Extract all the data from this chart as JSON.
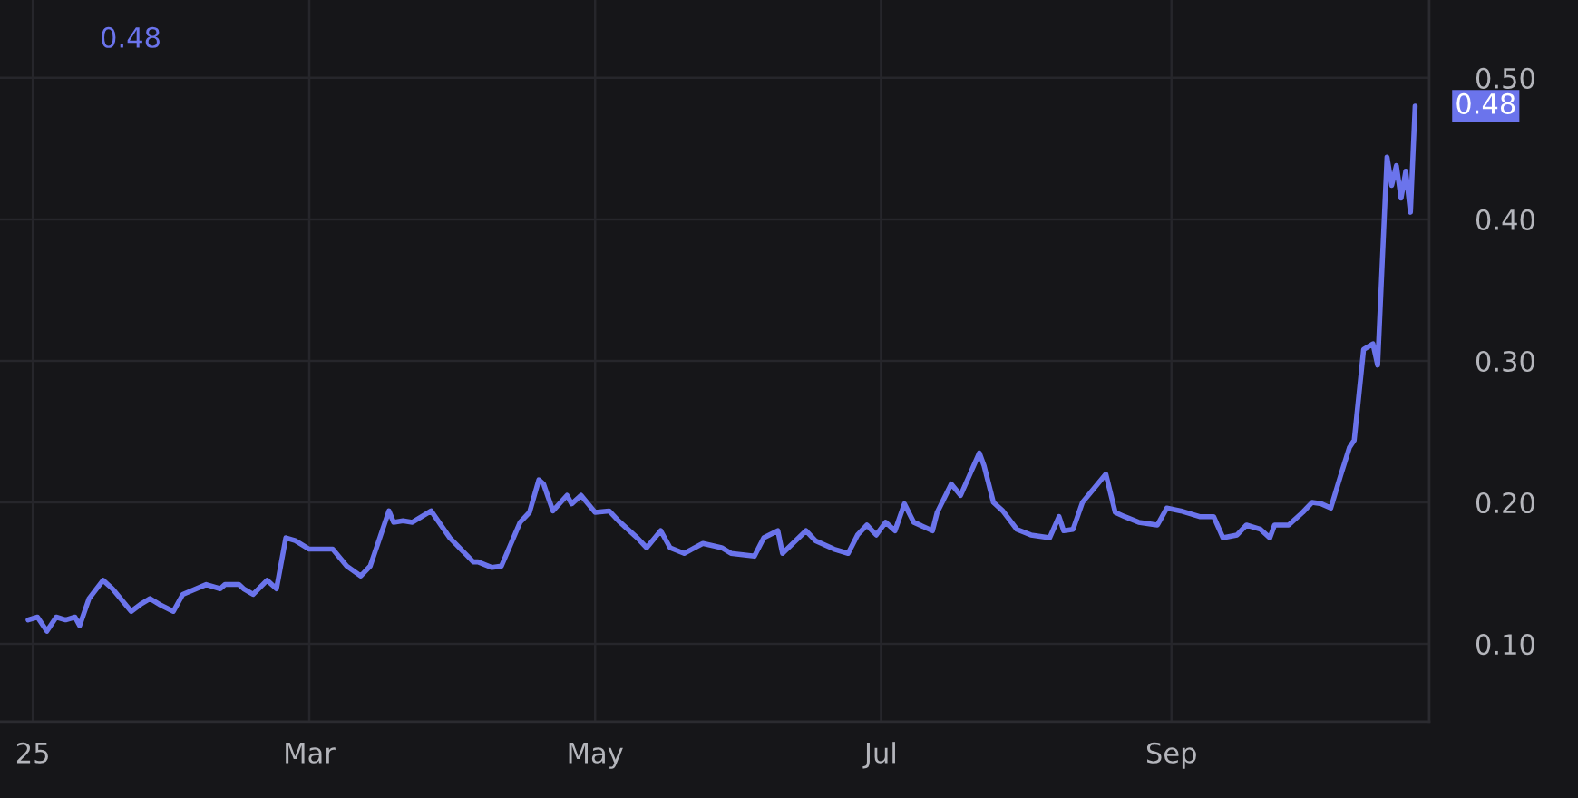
{
  "chart_data": {
    "type": "line",
    "x": [
      "2024-12-31",
      "2025-01-02",
      "2025-01-04",
      "2025-01-06",
      "2025-01-08",
      "2025-01-10",
      "2025-01-11",
      "2025-01-13",
      "2025-01-16",
      "2025-01-18",
      "2025-01-22",
      "2025-01-24",
      "2025-01-26",
      "2025-01-28",
      "2025-01-31",
      "2025-02-02",
      "2025-02-07",
      "2025-02-10",
      "2025-02-11",
      "2025-02-14",
      "2025-02-15",
      "2025-02-17",
      "2025-02-20",
      "2025-02-22",
      "2025-02-24",
      "2025-02-26",
      "2025-03-01",
      "2025-03-06",
      "2025-03-09",
      "2025-03-12",
      "2025-03-14",
      "2025-03-18",
      "2025-03-19",
      "2025-03-21",
      "2025-03-23",
      "2025-03-27",
      "2025-03-31",
      "2025-04-05",
      "2025-04-06",
      "2025-04-09",
      "2025-04-11",
      "2025-04-15",
      "2025-04-17",
      "2025-04-19",
      "2025-04-20",
      "2025-04-22",
      "2025-04-25",
      "2025-04-26",
      "2025-04-28",
      "2025-05-01",
      "2025-05-04",
      "2025-05-06",
      "2025-05-10",
      "2025-05-12",
      "2025-05-15",
      "2025-05-17",
      "2025-05-20",
      "2025-05-24",
      "2025-05-28",
      "2025-05-30",
      "2025-06-04",
      "2025-06-06",
      "2025-06-09",
      "2025-06-10",
      "2025-06-15",
      "2025-06-17",
      "2025-06-21",
      "2025-06-24",
      "2025-06-26",
      "2025-06-28",
      "2025-06-30",
      "2025-07-02",
      "2025-07-04",
      "2025-07-06",
      "2025-07-08",
      "2025-07-12",
      "2025-07-13",
      "2025-07-16",
      "2025-07-18",
      "2025-07-22",
      "2025-07-23",
      "2025-07-25",
      "2025-07-27",
      "2025-07-30",
      "2025-08-02",
      "2025-08-06",
      "2025-08-08",
      "2025-08-09",
      "2025-08-11",
      "2025-08-13",
      "2025-08-18",
      "2025-08-20",
      "2025-08-22",
      "2025-08-25",
      "2025-08-29",
      "2025-08-31",
      "2025-09-03",
      "2025-09-07",
      "2025-09-10",
      "2025-09-12",
      "2025-09-15",
      "2025-09-17",
      "2025-09-20",
      "2025-09-22",
      "2025-09-23",
      "2025-09-26",
      "2025-09-29",
      "2025-10-01",
      "2025-10-03",
      "2025-10-05",
      "2025-10-07",
      "2025-10-09",
      "2025-10-10",
      "2025-10-12",
      "2025-10-14",
      "2025-10-15",
      "2025-10-17",
      "2025-10-18",
      "2025-10-19",
      "2025-10-20",
      "2025-10-21",
      "2025-10-22",
      "2025-10-23"
    ],
    "series": [
      {
        "color": "#6b74ec",
        "values": [
          0.117,
          0.119,
          0.109,
          0.119,
          0.117,
          0.119,
          0.113,
          0.132,
          0.145,
          0.139,
          0.123,
          0.128,
          0.132,
          0.128,
          0.123,
          0.135,
          0.142,
          0.139,
          0.142,
          0.142,
          0.139,
          0.135,
          0.145,
          0.139,
          0.175,
          0.173,
          0.167,
          0.167,
          0.155,
          0.148,
          0.155,
          0.194,
          0.186,
          0.187,
          0.186,
          0.194,
          0.175,
          0.158,
          0.158,
          0.154,
          0.155,
          0.186,
          0.193,
          0.216,
          0.213,
          0.194,
          0.205,
          0.199,
          0.205,
          0.193,
          0.194,
          0.187,
          0.175,
          0.168,
          0.18,
          0.168,
          0.164,
          0.171,
          0.168,
          0.164,
          0.162,
          0.175,
          0.18,
          0.164,
          0.18,
          0.173,
          0.167,
          0.164,
          0.177,
          0.184,
          0.177,
          0.186,
          0.18,
          0.199,
          0.186,
          0.18,
          0.193,
          0.213,
          0.205,
          0.235,
          0.226,
          0.2,
          0.194,
          0.181,
          0.177,
          0.175,
          0.19,
          0.18,
          0.181,
          0.2,
          0.22,
          0.193,
          0.19,
          0.186,
          0.184,
          0.196,
          0.194,
          0.19,
          0.19,
          0.175,
          0.177,
          0.184,
          0.181,
          0.175,
          0.184,
          0.184,
          0.193,
          0.2,
          0.199,
          0.196,
          0.218,
          0.239,
          0.244,
          0.308,
          0.312,
          0.297,
          0.444,
          0.424,
          0.438,
          0.415,
          0.434,
          0.405,
          0.48
        ],
        "value_labels": [
          null,
          null,
          null,
          null,
          null,
          null,
          null,
          null,
          null,
          null,
          null,
          null,
          null,
          null,
          null,
          null,
          null,
          null,
          null,
          null,
          null,
          null,
          null,
          null,
          null,
          null,
          null,
          null,
          null,
          null,
          null,
          null,
          null,
          null,
          null,
          null,
          null,
          null,
          null,
          null,
          null,
          null,
          null,
          null,
          null,
          null,
          null,
          null,
          null,
          null,
          null,
          null,
          null,
          null,
          null,
          null,
          null,
          null,
          null,
          null,
          null,
          null,
          null,
          null,
          null,
          null,
          null,
          null,
          null,
          null,
          null,
          null,
          null,
          null,
          null,
          null,
          null,
          null,
          null,
          null,
          null,
          null,
          null,
          null,
          null,
          null,
          null,
          null,
          null,
          null,
          null,
          null,
          null,
          null,
          null,
          null,
          null,
          null,
          null,
          null,
          null,
          null,
          null,
          null,
          null,
          null,
          null,
          null,
          null,
          null,
          null,
          null,
          null,
          null,
          null,
          null,
          null,
          null,
          null,
          null,
          null,
          null,
          "0.48"
        ]
      }
    ],
    "xlim": [
      "2024-12-25",
      "2025-10-26"
    ],
    "xticks": [
      {
        "value": "2025-01-01",
        "label": "25"
      },
      {
        "value": "2025-03-01",
        "label": "Mar"
      },
      {
        "value": "2025-05-01",
        "label": "May"
      },
      {
        "value": "2025-07-01",
        "label": "Jul"
      },
      {
        "value": "2025-09-01",
        "label": "Sep"
      }
    ],
    "ylim": [
      0.045,
      0.555
    ],
    "yticks": [
      {
        "value": 0.1,
        "label": "0.10"
      },
      {
        "value": 0.2,
        "label": "0.20"
      },
      {
        "value": 0.3,
        "label": "0.30"
      },
      {
        "value": 0.4,
        "label": "0.40"
      },
      {
        "value": 0.5,
        "label": "0.50"
      }
    ],
    "grid": true,
    "annotations": [
      "0.48"
    ]
  }
}
